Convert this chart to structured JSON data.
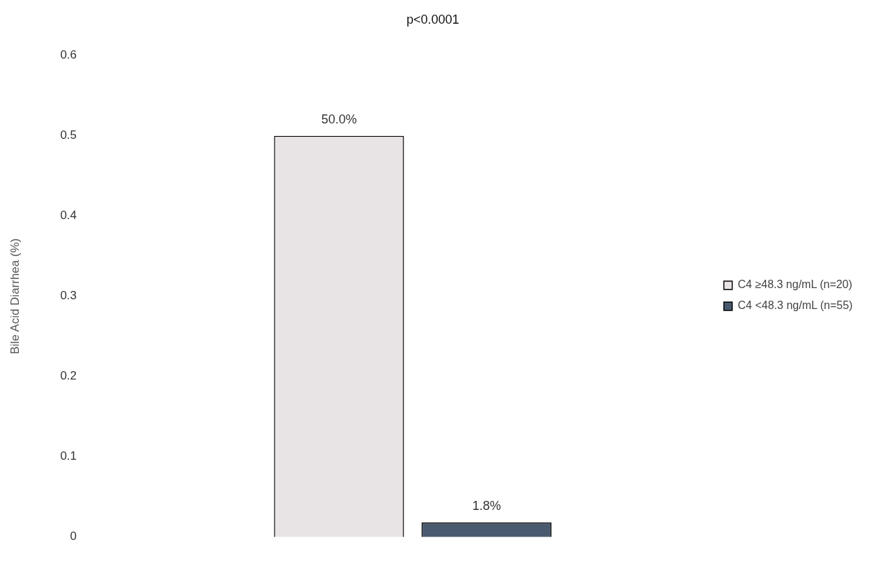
{
  "chart_data": {
    "type": "bar",
    "title": "p<0.0001",
    "ylabel": "Bile Acid Diarrhea (%)",
    "categories": [
      null
    ],
    "series": [
      {
        "name": "C4 ≥48.3 ng/mL (n=20)",
        "color": "#e8e4e5",
        "values": [
          0.5
        ],
        "value_labels": [
          "50.0%"
        ]
      },
      {
        "name": "C4 <48.3 ng/mL (n=55)",
        "color": "#4a5a6e",
        "values": [
          0.018
        ],
        "value_labels": [
          "1.8%"
        ]
      }
    ],
    "ylim": [
      0,
      0.6
    ],
    "yticks": [
      0,
      0.1,
      0.2,
      0.3,
      0.4,
      0.5,
      0.6
    ],
    "grid": false,
    "legend": "right",
    "tick_labels": "y"
  }
}
